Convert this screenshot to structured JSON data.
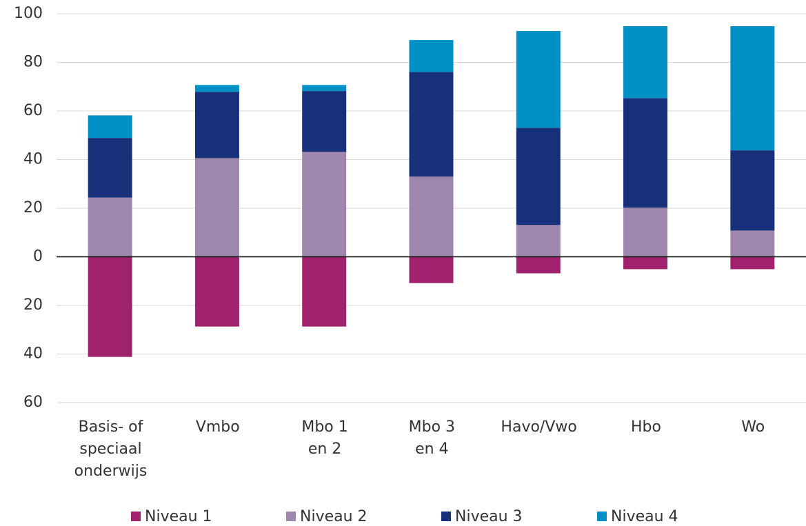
{
  "chart_data": {
    "type": "bar",
    "stacked": true,
    "categories": [
      "Basis- of\nspeciaal\nonderwijs",
      "Vmbo",
      "Mbo 1\nen 2",
      "Mbo 3\nen 4",
      "Havo/Vwo",
      "Hbo",
      "Wo"
    ],
    "series": [
      {
        "name": "Niveau 1",
        "color": "#a0226e",
        "values": [
          -41.2,
          -28.7,
          -28.7,
          -10.8,
          -6.8,
          -5.1,
          -5.1
        ]
      },
      {
        "name": "Niveau 2",
        "color": "#9e86ad",
        "values": [
          24.4,
          40.6,
          43.2,
          33,
          13.1,
          20.2,
          10.8
        ]
      },
      {
        "name": "Niveau 3",
        "color": "#17307a",
        "values": [
          24.5,
          27.3,
          25,
          43.1,
          40,
          45.1,
          33
        ]
      },
      {
        "name": "Niveau 4",
        "color": "#0190c5",
        "values": [
          9.3,
          2.8,
          2.5,
          13.1,
          39.8,
          29.6,
          51.1
        ]
      }
    ],
    "ylim": [
      -60,
      100
    ],
    "yticks": [
      {
        "value": -60,
        "label": "60"
      },
      {
        "value": -40,
        "label": "40"
      },
      {
        "value": -20,
        "label": "20"
      },
      0,
      20,
      40,
      60,
      80,
      100
    ],
    "grid": true,
    "legend": "bottom"
  }
}
